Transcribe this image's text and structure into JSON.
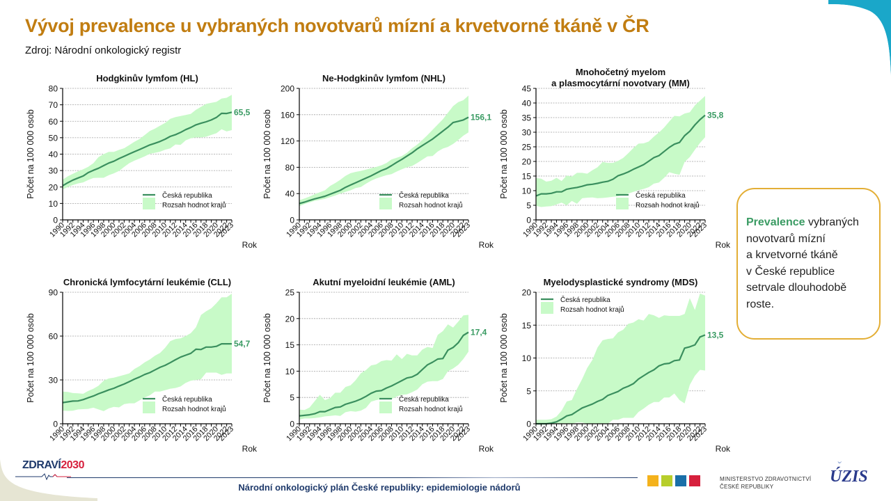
{
  "header": {
    "title": "Vývoj prevalence u vybraných novotvarů mízní a krvetvorné tkáně v ČR",
    "source": "Zdroj: Národní onkologický registr"
  },
  "callout": {
    "highlight": "Prevalence",
    "text_lines": [
      "vybraných",
      "novotvarů mízní",
      "a krvetvorné tkáně",
      "v České republice",
      "setrvale dlouhodobě",
      "roste."
    ]
  },
  "footer": {
    "text": "Národní onkologický plán České republiky: epidemiologie nádorů",
    "logo_left": {
      "part1": "ZDRAVÍ",
      "part2": "2030"
    },
    "ministry_line1": "MINISTERSTVO ZDRAVOTNICTVÍ",
    "ministry_line2": "ČESKÉ REPUBLIKY",
    "uzis": "ÚZIS"
  },
  "colors": {
    "title": "#C17D11",
    "line": "#3A8F5E",
    "band": "#C8FAC8",
    "label": "#3A9B63",
    "callout_border": "#E3AE35"
  },
  "chart_data": [
    {
      "type": "area",
      "title": "Hodgkinův lymfom (HL)",
      "xlabel": "Rok",
      "ylabel": "Počet na 100 000 osob",
      "ylim": [
        0,
        80
      ],
      "yticks": [
        0,
        10,
        20,
        30,
        40,
        50,
        60,
        70,
        80
      ],
      "end_label": "65,5",
      "legend": [
        "Česká republika",
        "Rozsah hodnot krajů"
      ],
      "legend_position": "bottom-right",
      "x": [
        1990,
        1991,
        1992,
        1993,
        1994,
        1995,
        1996,
        1997,
        1998,
        1999,
        2000,
        2001,
        2002,
        2003,
        2004,
        2005,
        2006,
        2007,
        2008,
        2009,
        2010,
        2011,
        2012,
        2013,
        2014,
        2015,
        2016,
        2017,
        2018,
        2019,
        2020,
        2021,
        2022,
        2023
      ],
      "series": [
        {
          "name": "Česká republika",
          "values": [
            20.8,
            22.6,
            24.2,
            25.5,
            26.7,
            28.8,
            30.2,
            31.4,
            33.0,
            34.6,
            35.7,
            37.3,
            38.7,
            40.1,
            41.5,
            42.8,
            44.2,
            45.6,
            46.6,
            47.7,
            49.1,
            50.8,
            51.8,
            53.2,
            54.9,
            56.2,
            57.8,
            58.8,
            59.7,
            60.8,
            62.3,
            64.8,
            64.7,
            65.5
          ]
        },
        {
          "name": "Rozsah hodnot krajů – min",
          "values": [
            18.5,
            20.0,
            21.2,
            22.2,
            22.8,
            24.3,
            25.5,
            25.6,
            25.6,
            27.2,
            28.3,
            29.8,
            32.2,
            34.5,
            36.0,
            37.3,
            38.6,
            40.2,
            40.8,
            41.5,
            42.7,
            43.5,
            45.9,
            45.6,
            48.4,
            49.6,
            50.2,
            50.2,
            50.6,
            51.7,
            52.7,
            55.1,
            53.8,
            54.6
          ]
        },
        {
          "name": "Rozsah hodnot krajů – max",
          "values": [
            24.5,
            26.5,
            28.0,
            29.5,
            30.8,
            32.3,
            34.5,
            38.2,
            40.0,
            41.4,
            41.4,
            42.6,
            43.6,
            45.5,
            47.5,
            49.2,
            51.6,
            54.1,
            55.5,
            57.3,
            59.0,
            61.5,
            62.5,
            63.2,
            63.8,
            64.5,
            67.0,
            68.8,
            70.6,
            71.2,
            71.8,
            73.8,
            74.3,
            76.1
          ]
        }
      ]
    },
    {
      "type": "area",
      "title": "Ne-Hodgkinův lymfom (NHL)",
      "xlabel": "Rok",
      "ylabel": "Počet na 100 000 osob",
      "ylim": [
        0,
        200
      ],
      "yticks": [
        0,
        40,
        80,
        120,
        160,
        200
      ],
      "end_label": "156,1",
      "legend": [
        "Česká republika",
        "Rozsah hodnot krajů"
      ],
      "legend_position": "bottom-right",
      "x": [
        1990,
        1991,
        1992,
        1993,
        1994,
        1995,
        1996,
        1997,
        1998,
        1999,
        2000,
        2001,
        2002,
        2003,
        2004,
        2005,
        2006,
        2007,
        2008,
        2009,
        2010,
        2011,
        2012,
        2013,
        2014,
        2015,
        2016,
        2017,
        2018,
        2019,
        2020,
        2021,
        2022,
        2023
      ],
      "series": [
        {
          "name": "Česká republika",
          "values": [
            25.0,
            27.0,
            29.5,
            32.0,
            34.0,
            36.0,
            39.0,
            42.0,
            45.0,
            49.5,
            53.0,
            56.5,
            60.0,
            63.5,
            67.0,
            71.0,
            75.0,
            78.0,
            82.5,
            87.5,
            92.0,
            97.0,
            102.0,
            108.0,
            113.0,
            118.0,
            123.0,
            129.0,
            135.0,
            141.0,
            148.0,
            150.0,
            152.0,
            156.1
          ]
        },
        {
          "name": "Rozsah hodnot krajů – min",
          "values": [
            21.0,
            24.0,
            26.5,
            29.0,
            30.5,
            32.0,
            34.5,
            37.0,
            40.0,
            42.5,
            45.0,
            48.5,
            50.0,
            55.0,
            59.5,
            63.0,
            65.5,
            68.0,
            69.5,
            73.5,
            77.0,
            80.0,
            82.0,
            86.5,
            91.5,
            96.5,
            97.0,
            104.0,
            108.5,
            111.0,
            115.5,
            121.5,
            128.0,
            133.0
          ]
        },
        {
          "name": "Rozsah hodnot krajů – max",
          "values": [
            30.0,
            32.5,
            35.5,
            39.0,
            42.0,
            45.0,
            51.5,
            56.0,
            61.0,
            67.0,
            71.0,
            73.0,
            74.5,
            76.5,
            78.5,
            80.5,
            83.0,
            86.5,
            92.0,
            94.5,
            97.0,
            102.0,
            109.0,
            114.5,
            121.5,
            129.0,
            137.0,
            145.0,
            153.0,
            163.0,
            173.0,
            179.0,
            182.0,
            189.0
          ]
        }
      ]
    },
    {
      "type": "area",
      "title": "Mnohočetný myelom a plasmocytární novotvary (MM)",
      "title_lines": [
        "Mnohočetný myelom",
        "a plasmocytární novotvary (MM)"
      ],
      "xlabel": "Rok",
      "ylabel": "Počet na 100 000 osob",
      "ylim": [
        0,
        45
      ],
      "yticks": [
        0,
        5,
        10,
        15,
        20,
        25,
        30,
        35,
        40,
        45
      ],
      "end_label": "35,8",
      "legend": [
        "Česká republika",
        "Rozsah hodnot krajů"
      ],
      "legend_position": "bottom-right",
      "x": [
        1990,
        1991,
        1992,
        1993,
        1994,
        1995,
        1996,
        1997,
        1998,
        1999,
        2000,
        2001,
        2002,
        2003,
        2004,
        2005,
        2006,
        2007,
        2008,
        2009,
        2010,
        2011,
        2012,
        2013,
        2014,
        2015,
        2016,
        2017,
        2018,
        2019,
        2020,
        2021,
        2022,
        2023
      ],
      "series": [
        {
          "name": "Česká republika",
          "values": [
            8.2,
            8.9,
            8.9,
            9.1,
            9.6,
            9.6,
            10.5,
            10.8,
            11.1,
            11.5,
            12.0,
            12.2,
            12.5,
            12.9,
            13.2,
            13.9,
            15.1,
            15.7,
            16.4,
            17.3,
            18.1,
            18.9,
            20.1,
            21.3,
            22.0,
            23.4,
            24.8,
            25.9,
            26.5,
            28.8,
            30.3,
            32.5,
            34.3,
            35.8
          ]
        },
        {
          "name": "Rozsah hodnot krajů – min",
          "values": [
            4.8,
            4.4,
            4.6,
            4.7,
            5.3,
            5.9,
            5.0,
            6.5,
            5.5,
            7.4,
            7.6,
            7.7,
            7.4,
            7.5,
            7.7,
            7.9,
            8.1,
            8.6,
            9.0,
            9.6,
            10.2,
            10.6,
            11.2,
            12.4,
            12.8,
            14.4,
            16.3,
            15.8,
            15.4,
            19.8,
            21.5,
            24.0,
            26.3,
            28.3
          ]
        },
        {
          "name": "Rozsah hodnot krajů – max",
          "values": [
            14.3,
            14.1,
            13.1,
            13.4,
            14.4,
            13.3,
            15.2,
            14.8,
            16.1,
            16.1,
            15.8,
            17.0,
            18.0,
            19.8,
            19.5,
            19.5,
            20.2,
            21.2,
            22.8,
            24.6,
            26.1,
            26.2,
            26.8,
            28.5,
            29.9,
            31.6,
            33.7,
            35.6,
            35.4,
            36.4,
            36.8,
            39.2,
            40.8,
            42.4
          ]
        }
      ]
    },
    {
      "type": "area",
      "title": "Chronická lymfocytární leukémie (CLL)",
      "xlabel": "Rok",
      "ylabel": "Počet na 100 000 osob",
      "ylim": [
        0,
        90
      ],
      "yticks": [
        0,
        30,
        60,
        90
      ],
      "end_label": "54,7",
      "legend": [
        "Česká republika",
        "Rozsah hodnot krajů"
      ],
      "legend_position": "bottom-right",
      "x": [
        1990,
        1991,
        1992,
        1993,
        1994,
        1995,
        1996,
        1997,
        1998,
        1999,
        2000,
        2001,
        2002,
        2003,
        2004,
        2005,
        2006,
        2007,
        2008,
        2009,
        2010,
        2011,
        2012,
        2013,
        2014,
        2015,
        2016,
        2017,
        2018,
        2019,
        2020,
        2021,
        2022,
        2023
      ],
      "series": [
        {
          "name": "Česká republika",
          "values": [
            14.5,
            15.0,
            15.5,
            15.6,
            16.5,
            17.8,
            19.0,
            20.5,
            21.8,
            23.2,
            24.3,
            25.8,
            27.2,
            28.8,
            30.5,
            32.0,
            33.7,
            35.0,
            36.8,
            38.6,
            40.0,
            41.8,
            43.8,
            45.6,
            46.9,
            48.2,
            51.0,
            50.8,
            52.5,
            52.5,
            53.0,
            54.7,
            54.7,
            54.7
          ]
        },
        {
          "name": "Rozsah hodnot krajů – min",
          "values": [
            9.0,
            8.8,
            8.9,
            9.8,
            10.0,
            10.2,
            11.0,
            9.8,
            8.6,
            10.5,
            11.5,
            11.2,
            13.5,
            14.0,
            14.0,
            16.0,
            18.0,
            19.5,
            22.0,
            22.0,
            23.0,
            24.0,
            24.5,
            25.5,
            28.0,
            29.5,
            30.0,
            30.5,
            35.0,
            35.0,
            35.0,
            33.5,
            34.5,
            34.5
          ]
        },
        {
          "name": "Rozsah hodnot krajů – max",
          "values": [
            22.0,
            21.8,
            21.0,
            20.8,
            20.5,
            22.5,
            24.0,
            26.0,
            29.5,
            31.0,
            31.5,
            32.5,
            33.5,
            34.5,
            37.5,
            39.5,
            42.0,
            44.0,
            46.5,
            48.5,
            52.0,
            56.5,
            58.0,
            58.5,
            60.0,
            62.0,
            66.0,
            74.5,
            77.0,
            79.0,
            82.5,
            86.5,
            86.5,
            89.0
          ]
        }
      ]
    },
    {
      "type": "area",
      "title": "Akutní myeloidní leukémie (AML)",
      "xlabel": "Rok",
      "ylabel": "Počet na 100 000 osob",
      "ylim": [
        0,
        25
      ],
      "yticks": [
        0,
        5,
        10,
        15,
        20,
        25
      ],
      "end_label": "17,4",
      "legend": [
        "Česká republika",
        "Rozsah hodnot krajů"
      ],
      "legend_position": "bottom-right",
      "x": [
        1990,
        1991,
        1992,
        1993,
        1994,
        1995,
        1996,
        1997,
        1998,
        1999,
        2000,
        2001,
        2002,
        2003,
        2004,
        2005,
        2006,
        2007,
        2008,
        2009,
        2010,
        2011,
        2012,
        2013,
        2014,
        2015,
        2016,
        2017,
        2018,
        2019,
        2020,
        2021,
        2022,
        2023
      ],
      "series": [
        {
          "name": "Česká republika",
          "values": [
            1.5,
            1.6,
            1.7,
            1.9,
            2.3,
            2.3,
            2.7,
            3.1,
            3.2,
            3.7,
            4.0,
            4.3,
            4.7,
            5.2,
            5.8,
            6.2,
            6.3,
            6.8,
            7.2,
            7.7,
            8.2,
            8.7,
            8.9,
            9.4,
            10.3,
            11.2,
            11.7,
            12.3,
            12.4,
            14.0,
            14.5,
            15.4,
            16.8,
            17.4
          ]
        },
        {
          "name": "Rozsah hodnot krajů – min",
          "values": [
            0.8,
            1.0,
            1.0,
            1.1,
            1.2,
            1.4,
            1.5,
            1.6,
            1.5,
            2.2,
            2.4,
            2.3,
            2.5,
            3.0,
            4.2,
            4.5,
            4.7,
            4.9,
            4.7,
            5.2,
            5.5,
            5.6,
            6.0,
            6.5,
            7.5,
            8.0,
            8.1,
            8.1,
            8.5,
            10.0,
            10.5,
            11.2,
            12.3,
            13.7
          ]
        },
        {
          "name": "Rozsah hodnot krajů – max",
          "values": [
            2.7,
            2.6,
            3.1,
            4.3,
            5.5,
            4.5,
            4.9,
            5.9,
            5.9,
            7.0,
            7.3,
            8.3,
            9.6,
            10.2,
            11.1,
            11.3,
            11.9,
            12.1,
            12.0,
            13.2,
            12.3,
            13.3,
            13.0,
            13.0,
            14.1,
            14.6,
            14.4,
            16.9,
            17.6,
            18.9,
            18.3,
            19.4,
            20.6,
            20.7
          ]
        }
      ]
    },
    {
      "type": "area",
      "title": "Myelodysplastické syndromy (MDS)",
      "xlabel": "Rok",
      "ylabel": "Počet na 100 000 osob",
      "ylim": [
        0,
        20
      ],
      "yticks": [
        0,
        5,
        10,
        15,
        20
      ],
      "end_label": "13,5",
      "legend": [
        "Česká republika",
        "Rozsah hodnot krajů"
      ],
      "legend_position": "top-left",
      "x": [
        1990,
        1991,
        1992,
        1993,
        1994,
        1995,
        1996,
        1997,
        1998,
        1999,
        2000,
        2001,
        2002,
        2003,
        2004,
        2005,
        2006,
        2007,
        2008,
        2009,
        2010,
        2011,
        2012,
        2013,
        2014,
        2015,
        2016,
        2017,
        2018,
        2019,
        2020,
        2021,
        2022,
        2023
      ],
      "series": [
        {
          "name": "Česká republika",
          "values": [
            0.0,
            0.0,
            0.0,
            0.1,
            0.3,
            0.7,
            1.2,
            1.4,
            1.9,
            2.4,
            2.7,
            3.0,
            3.4,
            3.7,
            4.3,
            4.6,
            4.9,
            5.4,
            5.7,
            6.1,
            6.8,
            7.3,
            7.8,
            8.2,
            8.8,
            9.1,
            9.2,
            9.6,
            9.7,
            11.5,
            11.7,
            12.0,
            13.2,
            13.5
          ]
        },
        {
          "name": "Rozsah hodnot krajů – min",
          "values": [
            0.0,
            0.0,
            0.0,
            0.0,
            0.0,
            0.0,
            0.0,
            0.0,
            0.2,
            0.2,
            0.0,
            0.0,
            0.0,
            0.0,
            0.0,
            0.6,
            0.6,
            0.9,
            0.9,
            0.9,
            1.8,
            2.3,
            2.9,
            3.3,
            3.3,
            4.0,
            4.0,
            4.6,
            3.6,
            3.1,
            5.9,
            7.3,
            8.2,
            8.1
          ]
        },
        {
          "name": "Rozsah hodnot krajů – max",
          "values": [
            0.6,
            0.6,
            0.6,
            0.7,
            1.1,
            2.0,
            3.4,
            3.6,
            5.3,
            6.8,
            8.5,
            9.7,
            11.6,
            12.7,
            12.9,
            13.0,
            13.9,
            14.3,
            15.2,
            15.4,
            15.9,
            15.7,
            16.7,
            16.5,
            16.1,
            16.5,
            16.4,
            16.4,
            16.4,
            16.7,
            19.1,
            17.3,
            19.8,
            19.5
          ]
        }
      ]
    }
  ]
}
